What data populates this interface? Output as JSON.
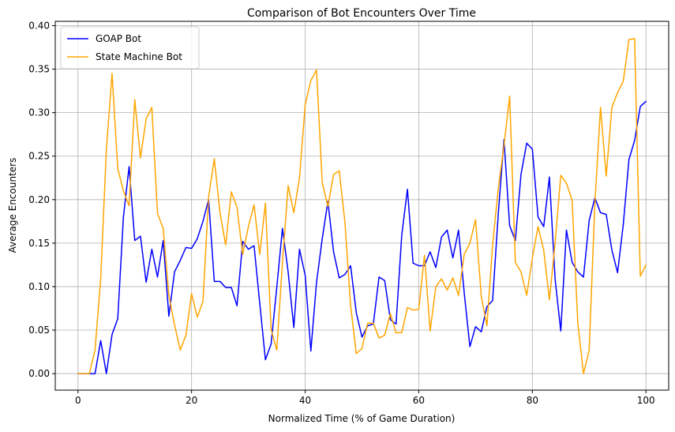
{
  "chart_data": {
    "type": "line",
    "title": "Comparison of Bot Encounters Over Time",
    "xlabel": "Normalized Time (% of Game Duration)",
    "ylabel": "Average Encounters",
    "xlim": [
      -4,
      104
    ],
    "ylim": [
      -0.019,
      0.405
    ],
    "xticks": [
      0,
      20,
      40,
      60,
      80,
      100
    ],
    "xtick_labels": [
      "0",
      "20",
      "40",
      "60",
      "80",
      "100"
    ],
    "yticks": [
      0.0,
      0.05,
      0.1,
      0.15,
      0.2,
      0.25,
      0.3,
      0.35,
      0.4
    ],
    "ytick_labels": [
      "0.00",
      "0.05",
      "0.10",
      "0.15",
      "0.20",
      "0.25",
      "0.30",
      "0.35",
      "0.40"
    ],
    "grid": true,
    "legend_position": "top-left",
    "series": [
      {
        "name": "GOAP Bot",
        "color": "#0000ff",
        "x": [
          0,
          1,
          2,
          3,
          4,
          5,
          6,
          7,
          8,
          9,
          10,
          11,
          12,
          13,
          14,
          15,
          16,
          17,
          18,
          19,
          20,
          21,
          22,
          23,
          24,
          25,
          26,
          27,
          28,
          29,
          30,
          31,
          32,
          33,
          34,
          35,
          36,
          37,
          38,
          39,
          40,
          41,
          42,
          43,
          44,
          45,
          46,
          47,
          48,
          49,
          50,
          51,
          52,
          53,
          54,
          55,
          56,
          57,
          58,
          59,
          60,
          61,
          62,
          63,
          64,
          65,
          66,
          67,
          68,
          69,
          70,
          71,
          72,
          73,
          74,
          75,
          76,
          77,
          78,
          79,
          80,
          81,
          82,
          83,
          84,
          85,
          86,
          87,
          88,
          89,
          90,
          91,
          92,
          93,
          94,
          95,
          96,
          97,
          98,
          99,
          100
        ],
        "values": [
          0.0,
          0.0,
          0.0,
          0.0,
          0.038,
          0.0,
          0.045,
          0.063,
          0.18,
          0.238,
          0.153,
          0.158,
          0.105,
          0.143,
          0.111,
          0.153,
          0.066,
          0.117,
          0.13,
          0.145,
          0.144,
          0.155,
          0.175,
          0.2,
          0.106,
          0.106,
          0.099,
          0.099,
          0.078,
          0.152,
          0.143,
          0.147,
          0.081,
          0.016,
          0.034,
          0.099,
          0.167,
          0.117,
          0.053,
          0.143,
          0.113,
          0.026,
          0.105,
          0.155,
          0.198,
          0.14,
          0.11,
          0.114,
          0.124,
          0.07,
          0.042,
          0.055,
          0.057,
          0.111,
          0.107,
          0.062,
          0.057,
          0.159,
          0.212,
          0.127,
          0.124,
          0.124,
          0.14,
          0.122,
          0.157,
          0.165,
          0.133,
          0.165,
          0.093,
          0.031,
          0.054,
          0.048,
          0.077,
          0.084,
          0.184,
          0.269,
          0.17,
          0.153,
          0.229,
          0.265,
          0.258,
          0.18,
          0.169,
          0.226,
          0.109,
          0.049,
          0.165,
          0.128,
          0.117,
          0.111,
          0.176,
          0.202,
          0.185,
          0.183,
          0.142,
          0.116,
          0.171,
          0.246,
          0.268,
          0.307,
          0.313
        ]
      },
      {
        "name": "State Machine Bot",
        "color": "#ffa500",
        "x": [
          0,
          1,
          2,
          3,
          4,
          5,
          6,
          7,
          8,
          9,
          10,
          11,
          12,
          13,
          14,
          15,
          16,
          17,
          18,
          19,
          20,
          21,
          22,
          23,
          24,
          25,
          26,
          27,
          28,
          29,
          30,
          31,
          32,
          33,
          34,
          35,
          36,
          37,
          38,
          39,
          40,
          41,
          42,
          43,
          44,
          45,
          46,
          47,
          48,
          49,
          50,
          51,
          52,
          53,
          54,
          55,
          56,
          57,
          58,
          59,
          60,
          61,
          62,
          63,
          64,
          65,
          66,
          67,
          68,
          69,
          70,
          71,
          72,
          73,
          74,
          75,
          76,
          77,
          78,
          79,
          80,
          81,
          82,
          83,
          84,
          85,
          86,
          87,
          88,
          89,
          90,
          91,
          92,
          93,
          94,
          95,
          96,
          97,
          98,
          99,
          100
        ],
        "values": [
          0.0,
          0.0,
          0.0,
          0.027,
          0.109,
          0.258,
          0.345,
          0.236,
          0.21,
          0.193,
          0.315,
          0.248,
          0.293,
          0.306,
          0.184,
          0.167,
          0.09,
          0.056,
          0.027,
          0.044,
          0.092,
          0.065,
          0.083,
          0.203,
          0.247,
          0.185,
          0.148,
          0.209,
          0.191,
          0.137,
          0.169,
          0.194,
          0.137,
          0.196,
          0.051,
          0.027,
          0.128,
          0.216,
          0.185,
          0.225,
          0.309,
          0.337,
          0.349,
          0.22,
          0.192,
          0.229,
          0.233,
          0.174,
          0.078,
          0.023,
          0.029,
          0.058,
          0.058,
          0.041,
          0.044,
          0.069,
          0.047,
          0.047,
          0.076,
          0.073,
          0.074,
          0.136,
          0.049,
          0.1,
          0.109,
          0.096,
          0.11,
          0.09,
          0.137,
          0.15,
          0.177,
          0.089,
          0.055,
          0.148,
          0.213,
          0.262,
          0.319,
          0.128,
          0.117,
          0.09,
          0.133,
          0.169,
          0.142,
          0.085,
          0.15,
          0.228,
          0.219,
          0.199,
          0.058,
          0.0,
          0.027,
          0.195,
          0.306,
          0.227,
          0.306,
          0.323,
          0.336,
          0.384,
          0.385,
          0.112,
          0.125
        ]
      }
    ]
  }
}
